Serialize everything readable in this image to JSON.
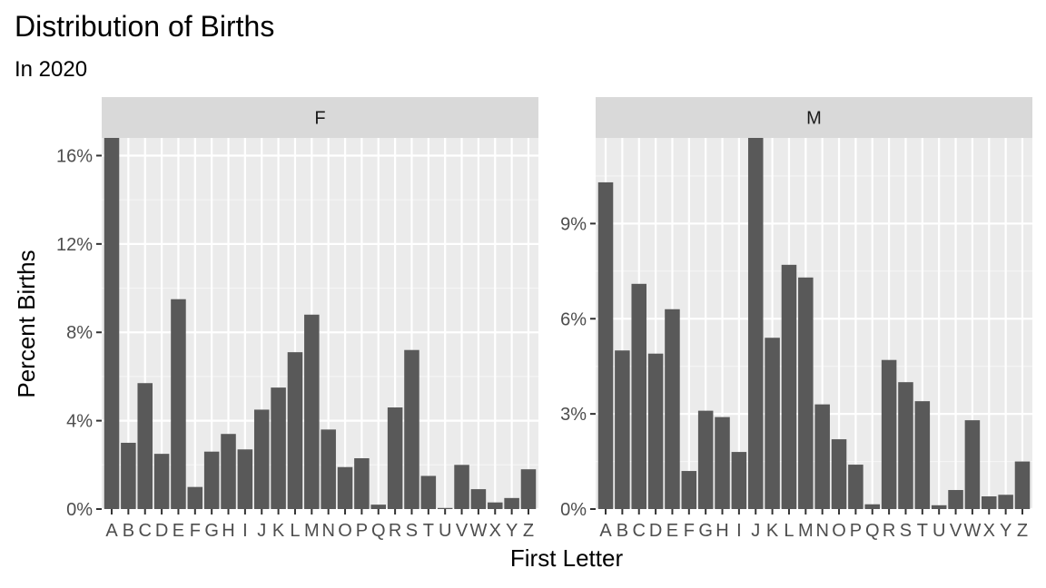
{
  "chart_data": {
    "type": "bar",
    "title": "Distribution of Births",
    "subtitle": "In 2020",
    "xlabel": "First Letter",
    "ylabel": "Percent Births",
    "grid": true,
    "legend": "none",
    "categories": [
      "A",
      "B",
      "C",
      "D",
      "E",
      "F",
      "G",
      "H",
      "I",
      "J",
      "K",
      "L",
      "M",
      "N",
      "O",
      "P",
      "Q",
      "R",
      "S",
      "T",
      "U",
      "V",
      "W",
      "X",
      "Y",
      "Z"
    ],
    "x_tick_labels": [
      "A",
      "B",
      "C",
      "D",
      "E",
      "F",
      "G",
      "H",
      "I",
      "J",
      "K",
      "L",
      "M",
      "N",
      "O",
      "P",
      "Q",
      "R",
      "S",
      "T",
      "U",
      "V",
      "W",
      "X",
      "Y",
      "Z"
    ],
    "colors": {
      "bar": "#595959",
      "panel": "#ebebeb",
      "strip": "#d9d9d9",
      "grid_major": "#ffffff",
      "grid_minor": "#f5f5f5"
    },
    "facets": [
      {
        "label": "F",
        "ylim": [
          0,
          16.8
        ],
        "y_ticks": [
          0,
          4,
          8,
          12,
          16
        ],
        "y_tick_labels": [
          "0%",
          "4%",
          "8%",
          "12%",
          "16%"
        ],
        "values": [
          16.8,
          3.0,
          5.7,
          2.5,
          9.5,
          1.0,
          2.6,
          3.4,
          2.7,
          4.5,
          5.5,
          7.1,
          8.8,
          3.6,
          1.9,
          2.3,
          0.2,
          4.6,
          7.2,
          1.5,
          0.05,
          2.0,
          0.9,
          0.3,
          0.5,
          1.8
        ]
      },
      {
        "label": "M",
        "ylim": [
          0,
          11.7
        ],
        "y_ticks": [
          0,
          3,
          6,
          9
        ],
        "y_tick_labels": [
          "0%",
          "3%",
          "6%",
          "9%"
        ],
        "values": [
          10.3,
          5.0,
          7.1,
          4.9,
          6.3,
          1.2,
          3.1,
          2.9,
          1.8,
          11.7,
          5.4,
          7.7,
          7.3,
          3.3,
          2.2,
          1.4,
          0.15,
          4.7,
          4.0,
          3.4,
          0.12,
          0.6,
          2.8,
          0.4,
          0.45,
          1.5
        ]
      }
    ]
  }
}
